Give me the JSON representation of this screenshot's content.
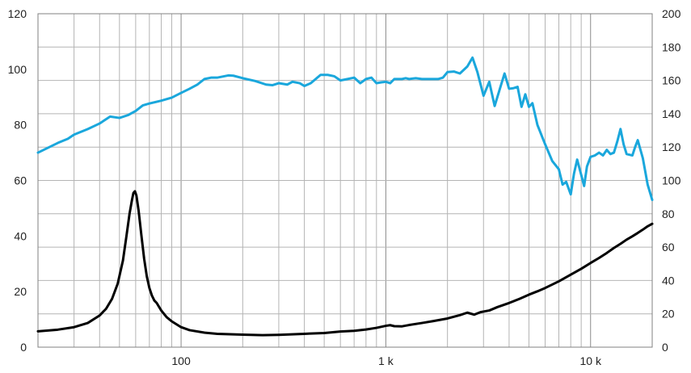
{
  "chart_data": {
    "type": "line",
    "x_scale": "log",
    "xlim": [
      20,
      20000
    ],
    "ylim_left": [
      0,
      120
    ],
    "ylim_right": [
      0,
      200
    ],
    "x_ticks": [
      {
        "value": 100,
        "label": "100"
      },
      {
        "value": 1000,
        "label": "1 k"
      },
      {
        "value": 10000,
        "label": "10 k"
      }
    ],
    "y_left_ticks": [
      "0",
      "20",
      "40",
      "60",
      "80",
      "100",
      "120"
    ],
    "y_left_values": [
      0,
      20,
      40,
      60,
      80,
      100,
      120
    ],
    "y_right_ticks": [
      "0",
      "20",
      "40",
      "60",
      "80",
      "100",
      "120",
      "140",
      "160",
      "180",
      "200"
    ],
    "y_right_values": [
      0,
      20,
      40,
      60,
      80,
      100,
      120,
      140,
      160,
      180,
      200
    ],
    "grid": true,
    "series": [
      {
        "color": "#1aa7dc",
        "axis": "left",
        "points": [
          [
            20,
            70
          ],
          [
            22,
            71.5
          ],
          [
            25,
            73.5
          ],
          [
            28,
            75
          ],
          [
            30,
            76.5
          ],
          [
            35,
            78.5
          ],
          [
            40,
            80.5
          ],
          [
            45,
            83
          ],
          [
            50,
            82.5
          ],
          [
            55,
            83.5
          ],
          [
            60,
            85
          ],
          [
            65,
            87
          ],
          [
            70,
            87.7
          ],
          [
            80,
            88.7
          ],
          [
            90,
            89.8
          ],
          [
            100,
            91.5
          ],
          [
            110,
            93
          ],
          [
            120,
            94.5
          ],
          [
            130,
            96.5
          ],
          [
            140,
            97
          ],
          [
            150,
            97
          ],
          [
            170,
            97.8
          ],
          [
            180,
            97.7
          ],
          [
            200,
            96.8
          ],
          [
            230,
            95.8
          ],
          [
            260,
            94.5
          ],
          [
            280,
            94.3
          ],
          [
            300,
            95
          ],
          [
            330,
            94.5
          ],
          [
            350,
            95.5
          ],
          [
            380,
            95
          ],
          [
            400,
            94
          ],
          [
            430,
            95
          ],
          [
            480,
            98
          ],
          [
            520,
            98
          ],
          [
            560,
            97.5
          ],
          [
            600,
            96
          ],
          [
            650,
            96.5
          ],
          [
            700,
            97
          ],
          [
            750,
            95
          ],
          [
            800,
            96.5
          ],
          [
            850,
            97
          ],
          [
            900,
            95
          ],
          [
            950,
            95.3
          ],
          [
            1000,
            95.5
          ],
          [
            1050,
            95
          ],
          [
            1100,
            96.5
          ],
          [
            1200,
            96.5
          ],
          [
            1250,
            96.8
          ],
          [
            1300,
            96.5
          ],
          [
            1400,
            96.8
          ],
          [
            1500,
            96.5
          ],
          [
            1600,
            96.5
          ],
          [
            1700,
            96.5
          ],
          [
            1800,
            96.5
          ],
          [
            1900,
            97
          ],
          [
            2000,
            99
          ],
          [
            2150,
            99.2
          ],
          [
            2300,
            98.5
          ],
          [
            2500,
            101
          ],
          [
            2650,
            104.2
          ],
          [
            2800,
            99
          ],
          [
            3000,
            90.5
          ],
          [
            3200,
            95.5
          ],
          [
            3400,
            86.8
          ],
          [
            3600,
            92.8
          ],
          [
            3800,
            98.5
          ],
          [
            4000,
            93
          ],
          [
            4200,
            93.2
          ],
          [
            4400,
            93.7
          ],
          [
            4600,
            86.5
          ],
          [
            4800,
            91
          ],
          [
            5000,
            86.5
          ],
          [
            5200,
            87.8
          ],
          [
            5500,
            80
          ],
          [
            6000,
            73
          ],
          [
            6500,
            67
          ],
          [
            7000,
            64
          ],
          [
            7300,
            58.5
          ],
          [
            7600,
            59.5
          ],
          [
            8000,
            55
          ],
          [
            8300,
            62.5
          ],
          [
            8600,
            67.5
          ],
          [
            9000,
            62
          ],
          [
            9300,
            58
          ],
          [
            9600,
            65
          ],
          [
            10000,
            68.5
          ],
          [
            10500,
            69
          ],
          [
            11000,
            70
          ],
          [
            11500,
            69
          ],
          [
            12000,
            71
          ],
          [
            12500,
            69.5
          ],
          [
            13000,
            70
          ],
          [
            13500,
            74
          ],
          [
            14000,
            78.5
          ],
          [
            14500,
            73
          ],
          [
            15000,
            69.5
          ],
          [
            16000,
            69
          ],
          [
            16500,
            72
          ],
          [
            17000,
            74.5
          ],
          [
            18000,
            68
          ],
          [
            19000,
            58.5
          ],
          [
            20000,
            53
          ]
        ]
      },
      {
        "color": "#000000",
        "axis": "right",
        "points": [
          [
            20,
            9.5
          ],
          [
            25,
            10.5
          ],
          [
            30,
            12
          ],
          [
            35,
            14.5
          ],
          [
            40,
            19
          ],
          [
            43,
            23
          ],
          [
            46,
            29
          ],
          [
            49,
            38
          ],
          [
            52,
            52
          ],
          [
            54,
            66
          ],
          [
            56,
            80
          ],
          [
            57.5,
            88
          ],
          [
            58.5,
            92.5
          ],
          [
            59.5,
            93.5
          ],
          [
            60.5,
            91
          ],
          [
            62,
            82
          ],
          [
            64,
            67
          ],
          [
            66,
            53
          ],
          [
            68,
            42.5
          ],
          [
            70,
            35.5
          ],
          [
            72,
            31
          ],
          [
            74,
            28
          ],
          [
            76,
            26.5
          ],
          [
            80,
            22
          ],
          [
            85,
            18
          ],
          [
            90,
            15.5
          ],
          [
            100,
            12
          ],
          [
            110,
            10.2
          ],
          [
            130,
            8.7
          ],
          [
            150,
            8
          ],
          [
            200,
            7.5
          ],
          [
            250,
            7.2
          ],
          [
            300,
            7.4
          ],
          [
            400,
            8
          ],
          [
            500,
            8.5
          ],
          [
            600,
            9.4
          ],
          [
            700,
            9.8
          ],
          [
            800,
            10.6
          ],
          [
            900,
            11.6
          ],
          [
            1000,
            12.8
          ],
          [
            1050,
            13.2
          ],
          [
            1100,
            12.6
          ],
          [
            1200,
            12.5
          ],
          [
            1300,
            13.3
          ],
          [
            1500,
            14.5
          ],
          [
            1700,
            15.6
          ],
          [
            2000,
            17.2
          ],
          [
            2300,
            19.2
          ],
          [
            2500,
            20.7
          ],
          [
            2700,
            19.5
          ],
          [
            2900,
            21
          ],
          [
            3200,
            22
          ],
          [
            3500,
            24
          ],
          [
            4000,
            26.5
          ],
          [
            4500,
            29
          ],
          [
            5000,
            31.5
          ],
          [
            5500,
            33.5
          ],
          [
            6000,
            35.5
          ],
          [
            7000,
            39.5
          ],
          [
            8000,
            43.5
          ],
          [
            9000,
            47
          ],
          [
            10000,
            50.5
          ],
          [
            11000,
            53.5
          ],
          [
            12000,
            56.5
          ],
          [
            13000,
            59.5
          ],
          [
            14000,
            62
          ],
          [
            15000,
            64.5
          ],
          [
            16000,
            66.5
          ],
          [
            17000,
            68.5
          ],
          [
            18000,
            70.5
          ],
          [
            19000,
            72.5
          ],
          [
            20000,
            74
          ]
        ]
      }
    ]
  }
}
